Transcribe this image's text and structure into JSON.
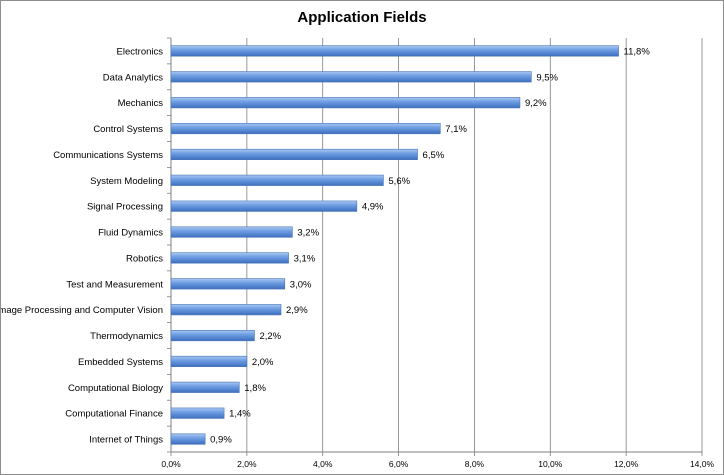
{
  "chart_data": {
    "type": "bar",
    "orientation": "horizontal",
    "title": "Application Fields",
    "categories": [
      "Electronics",
      "Data Analytics",
      "Mechanics",
      "Control Systems",
      "Communications Systems",
      "System Modeling",
      "Signal Processing",
      "Fluid Dynamics",
      "Robotics",
      "Test and Measurement",
      "Image Processing and Computer Vision",
      "Thermodynamics",
      "Embedded Systems",
      "Computational Biology",
      "Computational Finance",
      "Internet of Things"
    ],
    "values": [
      11.8,
      9.5,
      9.2,
      7.1,
      6.5,
      5.6,
      4.9,
      3.2,
      3.1,
      3.0,
      2.9,
      2.2,
      2.0,
      1.8,
      1.4,
      0.9
    ],
    "value_labels": [
      "11,8%",
      "9,5%",
      "9,2%",
      "7,1%",
      "6,5%",
      "5,6%",
      "4,9%",
      "3,2%",
      "3,1%",
      "3,0%",
      "2,9%",
      "2,2%",
      "2,0%",
      "1,8%",
      "1,4%",
      "0,9%"
    ],
    "xlim": [
      0,
      14
    ],
    "x_ticks": [
      0,
      2,
      4,
      6,
      8,
      10,
      12,
      14
    ],
    "x_tick_labels": [
      "0,0%",
      "2,0%",
      "4,0%",
      "6,0%",
      "8,0%",
      "10,0%",
      "12,0%",
      "14,0%"
    ],
    "xlabel": "",
    "ylabel": "",
    "grid": "vertical",
    "legend": "none",
    "colors": {
      "bar_light": "#a9c8f2",
      "bar_mid": "#6f9ee3",
      "bar_dark": "#3d6fbf",
      "bar_edge": "#4a76b8",
      "gridline": "#7f7f7f",
      "axis": "#7f7f7f"
    }
  }
}
